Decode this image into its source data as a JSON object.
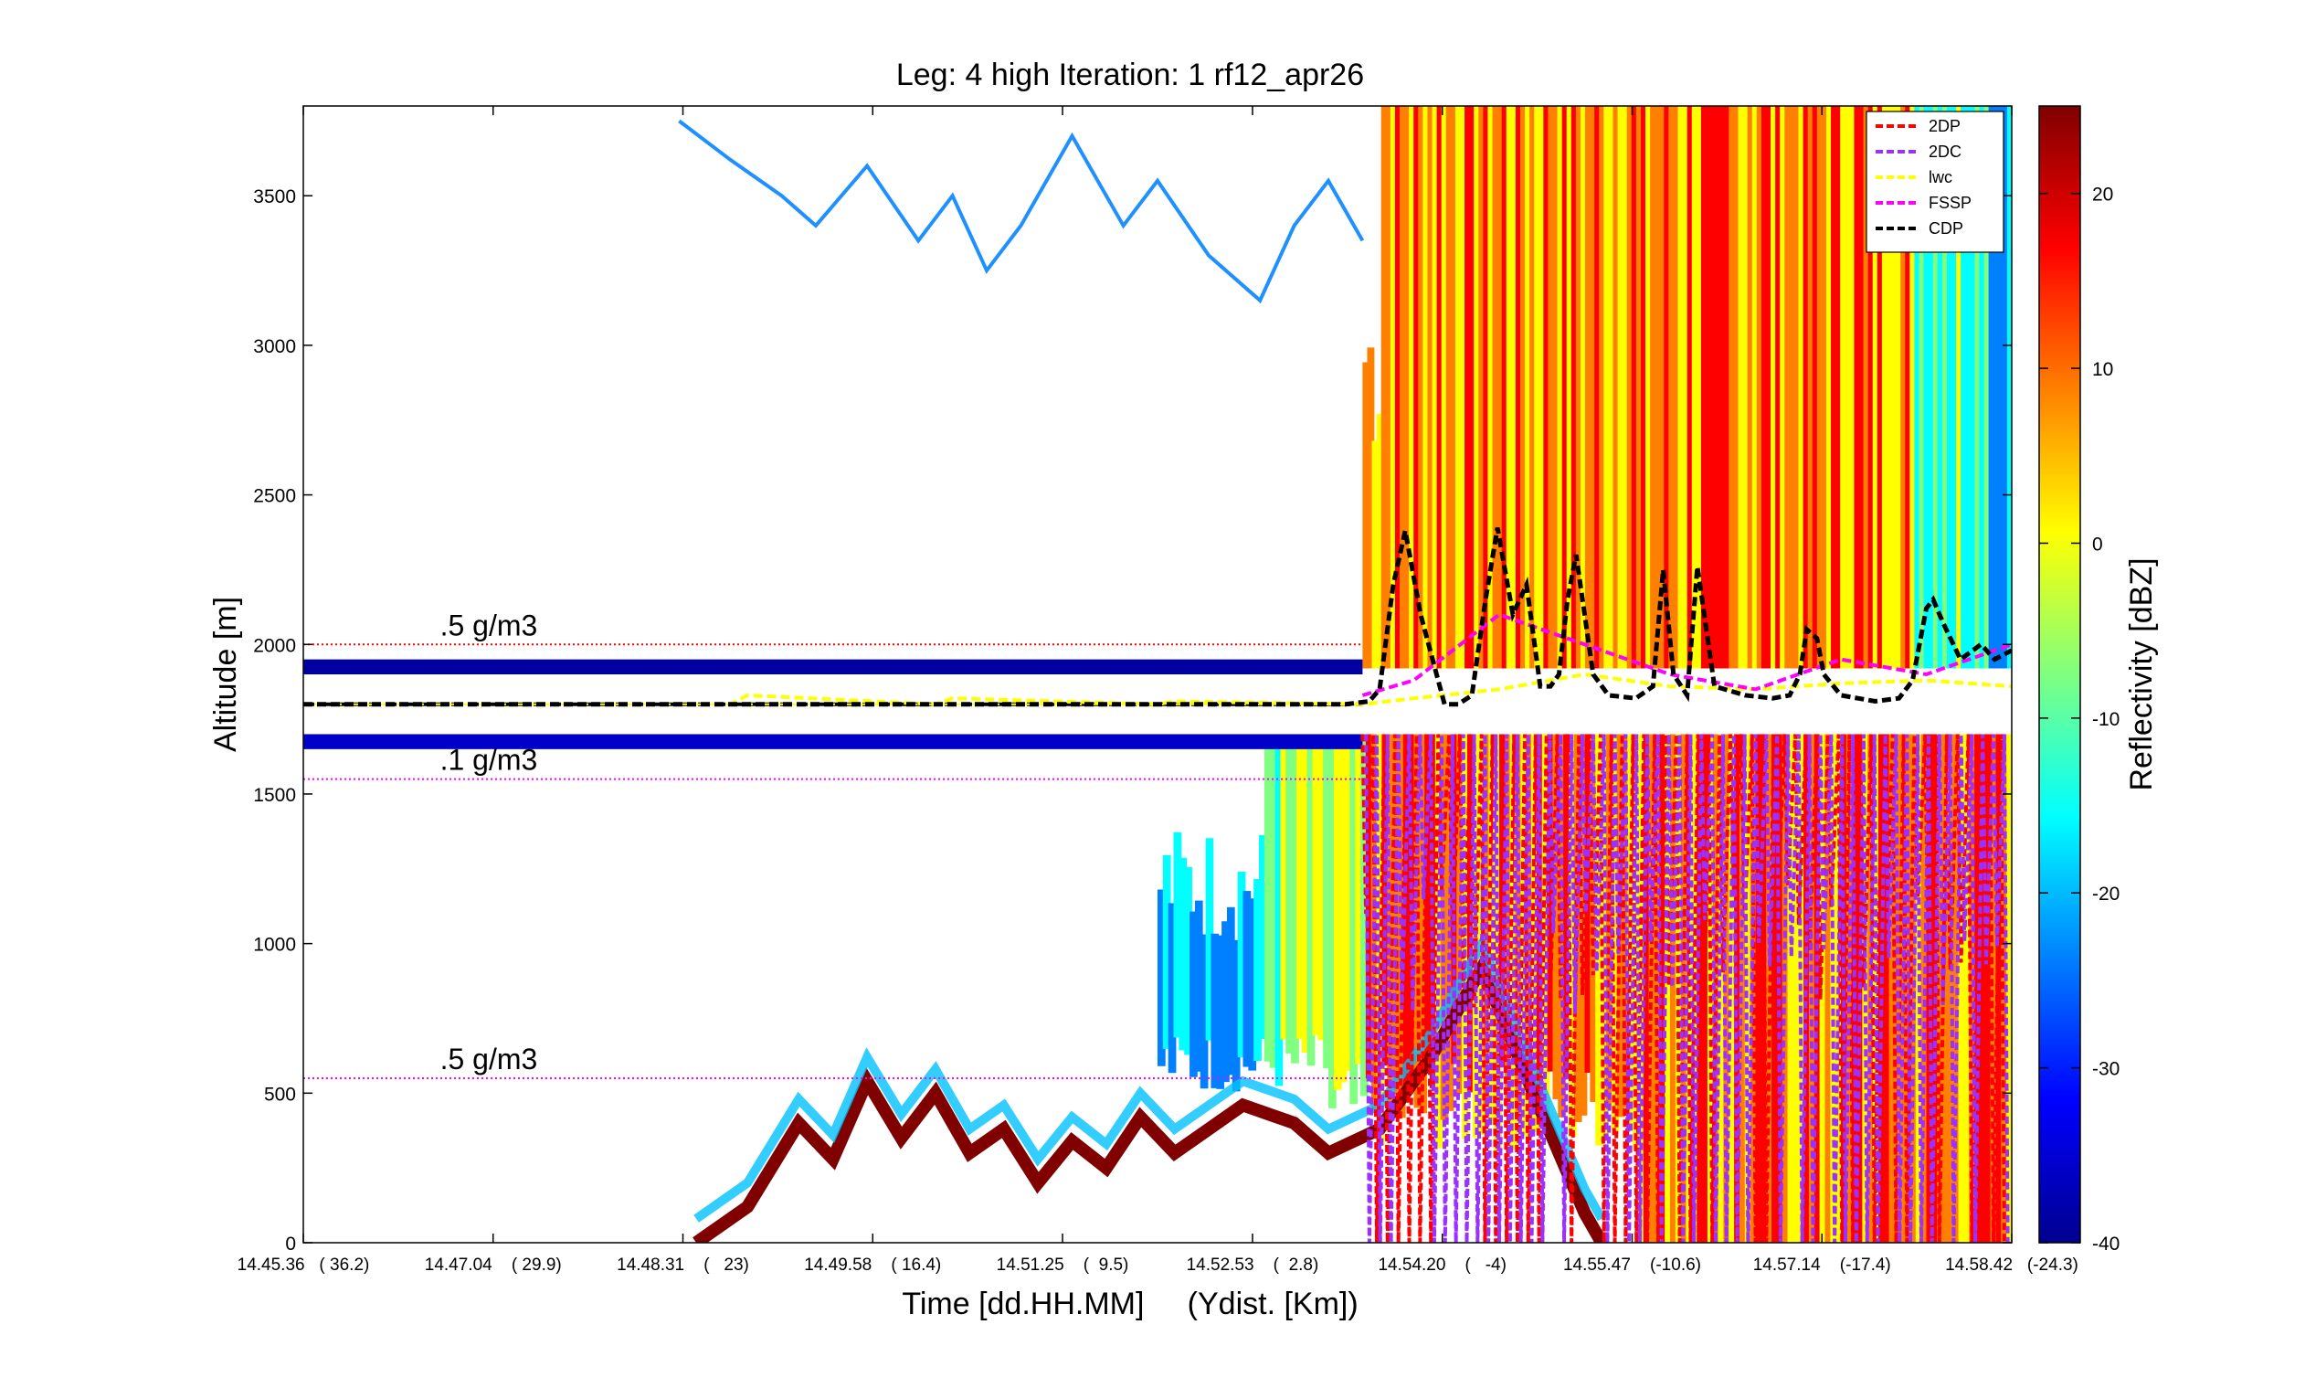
{
  "chart_data": {
    "type": "heatmap",
    "title": "Leg: 4 high Iteration: 1  rf12_apr26",
    "xlabel": "Time [dd.HH.MM]     (Ydist. [Km])",
    "ylabel": "Altitude [m]",
    "ylim": [
      0,
      3800
    ],
    "yticks": [
      0,
      500,
      1000,
      1500,
      2000,
      2500,
      3000,
      3500
    ],
    "xlim": [
      0,
      1
    ],
    "xticks": [
      {
        "pos": 0.0,
        "label": "14.45.36   ( 36.2)"
      },
      {
        "pos": 0.1111,
        "label": "14.47.04    ( 29.9)"
      },
      {
        "pos": 0.2222,
        "label": "14.48.31    (   23)"
      },
      {
        "pos": 0.3333,
        "label": "14.49.58    ( 16.4)"
      },
      {
        "pos": 0.4444,
        "label": "14.51.25    (  9.5)"
      },
      {
        "pos": 0.5556,
        "label": "14.52.53    (  2.8)"
      },
      {
        "pos": 0.6667,
        "label": "14.54.20    (   -4)"
      },
      {
        "pos": 0.7778,
        "label": "14.55.47    (-10.6)"
      },
      {
        "pos": 0.8889,
        "label": "14.57.14    (-17.4)"
      },
      {
        "pos": 1.0,
        "label": "14.58.42   (-24.3)"
      }
    ],
    "colorbar": {
      "label": "Reflectivity [dBZ]",
      "range": [
        -40,
        25
      ],
      "ticks": [
        -40,
        -30,
        -20,
        -10,
        0,
        10,
        20
      ],
      "colors": [
        "#00008f",
        "#0000ff",
        "#0080ff",
        "#00ffff",
        "#80ff80",
        "#ffff00",
        "#ff8000",
        "#ff0000",
        "#800000"
      ]
    },
    "legend": {
      "placement": "top-right",
      "entries": [
        {
          "name": "2DP",
          "color": "#ff0000"
        },
        {
          "name": "2DC",
          "color": "#9b30ff"
        },
        {
          "name": "lwc",
          "color": "#ffff00"
        },
        {
          "name": "FSSP",
          "color": "#ff00ff"
        },
        {
          "name": "CDP",
          "color": "#000000"
        }
      ]
    },
    "reference_lines": [
      {
        "label": ".5 g/m3",
        "altitude": 2000,
        "color": "#ff0000"
      },
      {
        "label": ".1 g/m3",
        "altitude": 1550,
        "color": "#ff00ff"
      },
      {
        "label": ".5 g/m3",
        "altitude": 550,
        "color": "#ff00ff"
      }
    ],
    "flight_level": {
      "altitude": 1800
    },
    "series": [
      {
        "name": "CDP",
        "x": [
          0.0,
          0.61,
          0.624,
          0.63,
          0.638,
          0.645,
          0.654,
          0.668,
          0.676,
          0.684,
          0.692,
          0.699,
          0.708,
          0.716,
          0.724,
          0.73,
          0.735,
          0.74,
          0.745,
          0.75,
          0.755,
          0.764,
          0.78,
          0.79,
          0.796,
          0.802,
          0.81,
          0.816,
          0.826,
          0.844,
          0.86,
          0.87,
          0.876,
          0.88,
          0.886,
          0.89,
          0.9,
          0.91,
          0.92,
          0.934,
          0.942,
          0.95,
          0.954,
          0.96,
          0.97,
          0.982,
          0.99,
          1.0
        ],
        "y": [
          1800,
          1800,
          1810,
          1850,
          2200,
          2380,
          2100,
          1800,
          1800,
          1830,
          2150,
          2390,
          2100,
          2200,
          1860,
          1860,
          1900,
          2150,
          2300,
          2100,
          1900,
          1830,
          1820,
          1860,
          2250,
          1900,
          1830,
          2260,
          1860,
          1830,
          1820,
          1830,
          1900,
          2050,
          2020,
          1900,
          1830,
          1820,
          1810,
          1820,
          1880,
          2120,
          2150,
          2070,
          1950,
          2000,
          1950,
          1980
        ]
      },
      {
        "name": "lwc",
        "x": [
          0.0,
          0.25,
          0.26,
          0.37,
          0.38,
          0.5,
          0.51,
          0.62,
          0.65,
          0.7,
          0.75,
          0.8,
          0.85,
          0.9,
          0.95,
          1.0
        ],
        "y": [
          1800,
          1800,
          1830,
          1800,
          1820,
          1800,
          1810,
          1800,
          1820,
          1850,
          1900,
          1860,
          1850,
          1870,
          1880,
          1860
        ]
      },
      {
        "name": "FSSP",
        "x": [
          0.62,
          0.65,
          0.7,
          0.75,
          0.8,
          0.85,
          0.9,
          0.95,
          1.0
        ],
        "y": [
          1830,
          1880,
          2100,
          2000,
          1900,
          1850,
          1950,
          1900,
          2000
        ]
      }
    ],
    "annotations": [
      ".5 g/m3",
      ".1 g/m3",
      ".5 g/m3"
    ]
  }
}
